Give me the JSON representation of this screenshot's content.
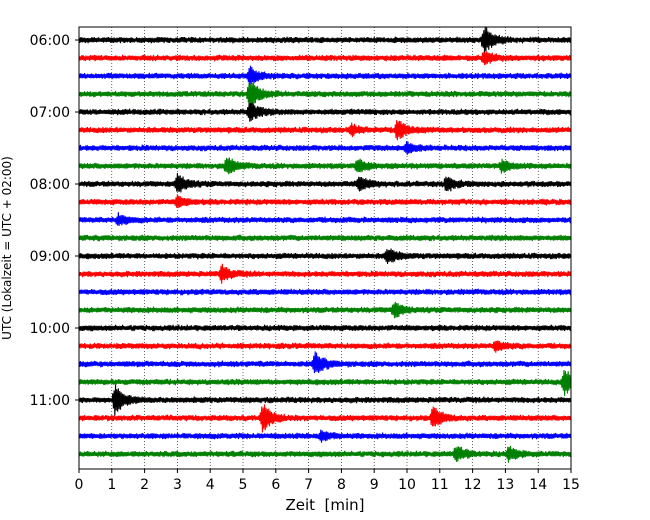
{
  "chart_data": {
    "type": "line",
    "title": "",
    "xlabel": "Zeit  [min]",
    "ylabel": "UTC (Lokalzeit = UTC + 02:00)",
    "xlim": [
      0,
      15
    ],
    "x_ticks": [
      "0",
      "1",
      "2",
      "3",
      "4",
      "5",
      "6",
      "7",
      "8",
      "9",
      "10",
      "11",
      "12",
      "13",
      "14",
      "15"
    ],
    "y_tick_labels": [
      "06:00",
      "07:00",
      "08:00",
      "09:00",
      "10:00",
      "11:00"
    ],
    "grid": "vertical dotted",
    "trace_colors": [
      "#000000",
      "#ff0000",
      "#0000ff",
      "#008000"
    ],
    "trace_start_times": [
      "06:00",
      "06:15",
      "06:30",
      "06:45",
      "07:00",
      "07:15",
      "07:30",
      "07:45",
      "08:00",
      "08:15",
      "08:30",
      "08:45",
      "09:00",
      "09:15",
      "09:30",
      "09:45",
      "10:00",
      "10:15",
      "10:30",
      "10:45",
      "11:00",
      "11:15",
      "11:30",
      "11:45"
    ],
    "events": [
      {
        "trace": 0,
        "t": 12.35,
        "amp": 1.0
      },
      {
        "trace": 1,
        "t": 12.35,
        "amp": 0.4
      },
      {
        "trace": 2,
        "t": 5.2,
        "amp": 0.6
      },
      {
        "trace": 3,
        "t": 5.2,
        "amp": 1.0
      },
      {
        "trace": 4,
        "t": 5.2,
        "amp": 0.7
      },
      {
        "trace": 5,
        "t": 9.7,
        "amp": 0.7
      },
      {
        "trace": 5,
        "t": 8.3,
        "amp": 0.35
      },
      {
        "trace": 6,
        "t": 10.0,
        "amp": 0.35
      },
      {
        "trace": 7,
        "t": 4.5,
        "amp": 0.6
      },
      {
        "trace": 7,
        "t": 8.5,
        "amp": 0.5
      },
      {
        "trace": 7,
        "t": 12.9,
        "amp": 0.4
      },
      {
        "trace": 8,
        "t": 3.0,
        "amp": 0.7
      },
      {
        "trace": 8,
        "t": 8.55,
        "amp": 0.5
      },
      {
        "trace": 8,
        "t": 11.2,
        "amp": 0.5
      },
      {
        "trace": 9,
        "t": 3.0,
        "amp": 0.35
      },
      {
        "trace": 10,
        "t": 1.2,
        "amp": 0.35
      },
      {
        "trace": 12,
        "t": 9.4,
        "amp": 0.55
      },
      {
        "trace": 13,
        "t": 4.35,
        "amp": 0.55
      },
      {
        "trace": 15,
        "t": 9.6,
        "amp": 0.55
      },
      {
        "trace": 17,
        "t": 12.7,
        "amp": 0.35
      },
      {
        "trace": 18,
        "t": 7.2,
        "amp": 0.75
      },
      {
        "trace": 19,
        "t": 14.8,
        "amp": 1.0
      },
      {
        "trace": 20,
        "t": 1.1,
        "amp": 1.0
      },
      {
        "trace": 21,
        "t": 5.6,
        "amp": 1.0
      },
      {
        "trace": 21,
        "t": 10.8,
        "amp": 0.8
      },
      {
        "trace": 22,
        "t": 7.4,
        "amp": 0.35
      },
      {
        "trace": 23,
        "t": 11.5,
        "amp": 0.55
      },
      {
        "trace": 23,
        "t": 13.1,
        "amp": 0.45
      }
    ]
  }
}
